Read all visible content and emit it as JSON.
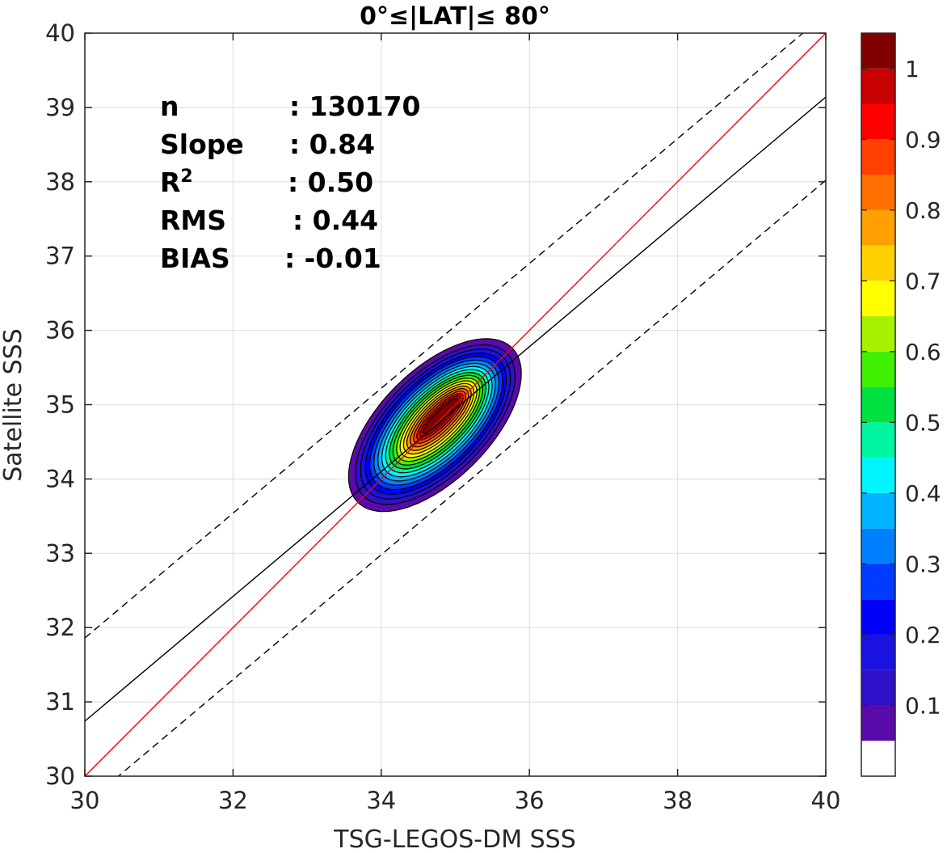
{
  "chart_data": {
    "type": "heatmap",
    "subtype": "normalized density contour (filled) scatter comparison",
    "title": "0°≤|LAT|≤ 80°",
    "xlabel": "TSG-LEGOS-DM SSS",
    "ylabel": "Satellite SSS",
    "xlim": [
      30,
      40
    ],
    "ylim": [
      30,
      40
    ],
    "xticks": [
      30,
      32,
      34,
      36,
      38,
      40
    ],
    "yticks": [
      30,
      31,
      32,
      33,
      34,
      35,
      36,
      37,
      38,
      39,
      40
    ],
    "grid": true,
    "stats": [
      {
        "key": "n",
        "value": ": 130170"
      },
      {
        "key": "Slope",
        "value": ": 0.84"
      },
      {
        "key": "R",
        "sup": "2",
        "value": ": 0.50"
      },
      {
        "key": "RMS",
        "value": ": 0.44"
      },
      {
        "key": "BIAS",
        "value": ": -0.01"
      }
    ],
    "lines": [
      {
        "role": "one-to-one",
        "color": "#ff0000",
        "style": "solid",
        "slope": 1.0,
        "intercept": 0.0
      },
      {
        "role": "regression fit",
        "color": "#000000",
        "style": "solid",
        "slope": 0.84,
        "intercept": 5.54
      },
      {
        "role": "upper bound",
        "color": "#000000",
        "style": "dashed",
        "slope": 0.84,
        "intercept": 6.66
      },
      {
        "role": "lower bound",
        "color": "#000000",
        "style": "dashed",
        "slope": 0.84,
        "intercept": 4.42
      }
    ],
    "density": {
      "center_x": 34.62,
      "center_y": 34.65,
      "peak_x": 34.8,
      "peak_y": 34.85,
      "outer_extent_x": [
        33.7,
        35.75
      ],
      "outer_extent_y": [
        33.8,
        35.65
      ]
    },
    "colorbar": {
      "range": [
        0,
        1
      ],
      "ticks": [
        {
          "value": 0.1,
          "label": "0.1"
        },
        {
          "value": 0.2,
          "label": "0.2"
        },
        {
          "value": 0.3,
          "label": "0.3"
        },
        {
          "value": 0.4,
          "label": "0.4"
        },
        {
          "value": 0.5,
          "label": "0.5"
        },
        {
          "value": 0.6,
          "label": "0.6"
        },
        {
          "value": 0.7,
          "label": "0.7"
        },
        {
          "value": 0.8,
          "label": "0.8"
        },
        {
          "value": 0.9,
          "label": "0.9"
        },
        {
          "value": 1.0,
          "label": "1"
        }
      ],
      "levels": [
        {
          "from": 0.0,
          "to": 0.05,
          "color": "#ffffff"
        },
        {
          "from": 0.05,
          "to": 0.1,
          "color": "#5a0aa8"
        },
        {
          "from": 0.1,
          "to": 0.15,
          "color": "#3010c8"
        },
        {
          "from": 0.15,
          "to": 0.2,
          "color": "#1a12e0"
        },
        {
          "from": 0.2,
          "to": 0.25,
          "color": "#0000f8"
        },
        {
          "from": 0.25,
          "to": 0.3,
          "color": "#003cff"
        },
        {
          "from": 0.3,
          "to": 0.35,
          "color": "#0080ff"
        },
        {
          "from": 0.35,
          "to": 0.4,
          "color": "#00b4ff"
        },
        {
          "from": 0.4,
          "to": 0.45,
          "color": "#00f5ff"
        },
        {
          "from": 0.45,
          "to": 0.5,
          "color": "#00f5a0"
        },
        {
          "from": 0.5,
          "to": 0.55,
          "color": "#00e040"
        },
        {
          "from": 0.55,
          "to": 0.6,
          "color": "#40f000"
        },
        {
          "from": 0.6,
          "to": 0.65,
          "color": "#a8f000"
        },
        {
          "from": 0.65,
          "to": 0.7,
          "color": "#ffff00"
        },
        {
          "from": 0.7,
          "to": 0.75,
          "color": "#ffd000"
        },
        {
          "from": 0.75,
          "to": 0.8,
          "color": "#ffa000"
        },
        {
          "from": 0.8,
          "to": 0.85,
          "color": "#ff7000"
        },
        {
          "from": 0.85,
          "to": 0.9,
          "color": "#ff4000"
        },
        {
          "from": 0.9,
          "to": 0.95,
          "color": "#ff0000"
        },
        {
          "from": 0.95,
          "to": 1.0,
          "color": "#c80000"
        },
        {
          "from": 1.0,
          "to": 1.05,
          "color": "#800000"
        }
      ]
    }
  }
}
